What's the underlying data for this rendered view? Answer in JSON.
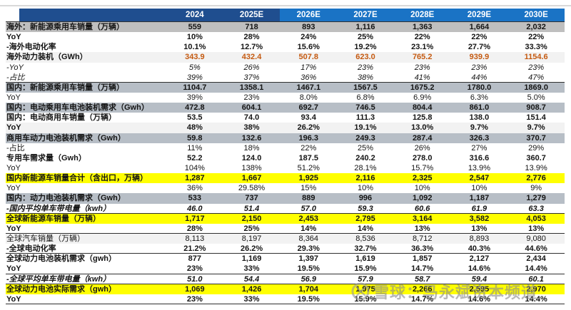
{
  "table": {
    "years": [
      "2024",
      "2025E",
      "2026E",
      "2027E",
      "2028E",
      "2029E",
      "2030E"
    ],
    "rows": [
      {
        "label": "海外：新能源乘用车销量（万辆）",
        "values": [
          "559",
          "718",
          "893",
          "1,116",
          "1,363",
          "1,664",
          "2,032"
        ],
        "bg": "gray",
        "bold": true
      },
      {
        "label": "YoY",
        "values": [
          "10%",
          "28%",
          "24%",
          "25%",
          "22%",
          "22%",
          "22%"
        ],
        "bold": true
      },
      {
        "label": "-海外电动化率",
        "values": [
          "10.1%",
          "12.7%",
          "15.6%",
          "19.2%",
          "23.1%",
          "27.7%",
          "33.3%"
        ],
        "bold": true
      },
      {
        "label": "海外动力装机（GWh）",
        "values": [
          "343.9",
          "432.4",
          "507.8",
          "623.0",
          "765.2",
          "939.9",
          "1154.6"
        ],
        "bg": "light",
        "bold": true,
        "orange": true
      },
      {
        "label": "-YoY",
        "values": [
          "5%",
          "26%",
          "17%",
          "23%",
          "23%",
          "23%",
          "23%"
        ],
        "italic": true
      },
      {
        "label": "-占比",
        "values": [
          "39%",
          "37%",
          "36%",
          "38%",
          "41%",
          "44%",
          "47%"
        ],
        "italic": true,
        "border": true
      },
      {
        "label": "国内：新能源乘用车销量（万辆）",
        "values": [
          "1104.7",
          "1358.1",
          "1467.1",
          "1567.5",
          "1675.2",
          "1780.0",
          "1869.0"
        ],
        "bg": "grayblue",
        "bold": true
      },
      {
        "label": "YoY",
        "values": [
          "39%",
          "23%",
          "8.0%",
          "6.8%",
          "6.9%",
          "6.3%",
          "5.0%"
        ]
      },
      {
        "label": "国内：电动乘用车电池装机需求（Gwh）",
        "values": [
          "472.8",
          "604.1",
          "692.7",
          "746.5",
          "804.4",
          "861.0",
          "908.7"
        ],
        "bg": "grayblue",
        "bold": true
      },
      {
        "label": "国内：电动商用车销量（万辆）",
        "values": [
          "53.5",
          "74.0",
          "93.4",
          "111.3",
          "125.8",
          "138.0",
          "151.4"
        ],
        "bold": true
      },
      {
        "label": "YoY",
        "values": [
          "48%",
          "38%",
          "26.2%",
          "19.1%",
          "13.0%",
          "9.7%",
          "9.7%"
        ],
        "bg": "light",
        "bold": true
      },
      {
        "label": "商用车动力电池装机需求（Gwh）",
        "values": [
          "59.8",
          "132.6",
          "196.3",
          "249.3",
          "287.4",
          "326.3",
          "370.7"
        ],
        "bg": "grayblue",
        "bold": true
      },
      {
        "label": "-占比",
        "values": [
          "11%",
          "18%",
          "22%",
          "25%",
          "26%",
          "27%",
          "29%"
        ]
      },
      {
        "label": "专用车需求量（Gwh）",
        "values": [
          "52.2",
          "124.0",
          "187.5",
          "240.2",
          "278.0",
          "316.6",
          "360.7"
        ],
        "bold": true
      },
      {
        "label": "YoY",
        "values": [
          "104%",
          "138%",
          "51.2%",
          "28.1%",
          "15.7%",
          "13.9%",
          "13.9%"
        ]
      },
      {
        "label": "国内新能源车销量合计（含出口，万辆）",
        "values": [
          "1,287",
          "1,667",
          "1,925",
          "2,116",
          "2,325",
          "2,547",
          "2,776"
        ],
        "bg": "yellow",
        "bold": true
      },
      {
        "label": "YoY",
        "values": [
          "36%",
          "29.58%",
          "15%",
          "10%",
          "10%",
          "10%",
          "9%"
        ]
      },
      {
        "label": "国内：动力电池装机需求（Gwh）",
        "values": [
          "533",
          "737",
          "889",
          "996",
          "1,092",
          "1,187",
          "1,279"
        ],
        "bg": "grayblue",
        "bold": true
      },
      {
        "label": "-国内平均单车带电量（kwh）",
        "values": [
          "46.0",
          "51.4",
          "57.0",
          "59.3",
          "60.6",
          "61.9",
          "63.3"
        ],
        "bold": true,
        "italic": true,
        "border": true
      },
      {
        "label": "全球新能源车销量（万辆）",
        "values": [
          "1,717",
          "2,150",
          "2,453",
          "2,795",
          "3,164",
          "3,582",
          "4,053"
        ],
        "bg": "yellow",
        "bold": true
      },
      {
        "label": "YoY",
        "values": [
          "28%",
          "25%",
          "14%",
          "14%",
          "13%",
          "13%",
          "13%"
        ],
        "bold": true,
        "border": true
      },
      {
        "label": "全球汽车销量（万辆）",
        "values": [
          "8,113",
          "8,197",
          "8,364",
          "8,536",
          "8,712",
          "8,893",
          "9,080"
        ],
        "bg": "light"
      },
      {
        "label": "-全球电动化率",
        "values": [
          "21.2%",
          "26.2%",
          "29.3%",
          "32.7%",
          "36.3%",
          "40.3%",
          "44.6%"
        ],
        "bold": true,
        "border": true
      },
      {
        "label": "全球动力电池装机需求（gwh）",
        "values": [
          "877",
          "1,169",
          "1,397",
          "1,619",
          "1,857",
          "2,127",
          "2,434"
        ],
        "bold": true
      },
      {
        "label": "YoY",
        "values": [
          "23%",
          "33%",
          "19.5%",
          "15.9%",
          "14.7%",
          "14.6%",
          "14.4%"
        ],
        "bold": true,
        "border": true
      },
      {
        "label": "-全球平均单车带电量（kwh）",
        "values": [
          "51.0",
          "54.4",
          "56.9",
          "57.9",
          "58.7",
          "59.4",
          "60.1"
        ],
        "bold": true,
        "italic": true,
        "border": true
      },
      {
        "label": "全球动力电池实际需求（gwh）",
        "values": [
          "1,069",
          "1,426",
          "1,704",
          "1,975",
          "2,266",
          "2,595",
          "2,970"
        ],
        "bg": "yellow",
        "bold": true
      },
      {
        "label": "YoY",
        "values": [
          "23%",
          "33%",
          "19.5%",
          "15.9%",
          "14.7%",
          "14.6%",
          "14.4%"
        ],
        "bold": true,
        "border": true
      }
    ]
  },
  "watermark": {
    "logo": "xueqiu-snowball-logo",
    "text": "雪球：马永斌资本频道"
  },
  "colors": {
    "header_dark_blue": "#1f4e8f",
    "header_light_blue": "#1a73c5",
    "row_gray": "#bfbfbf",
    "row_grayblue": "#b7bec6",
    "row_lightgray": "#f2f2f2",
    "highlight_yellow": "#ffff00",
    "orange_values": "#c55a11"
  }
}
